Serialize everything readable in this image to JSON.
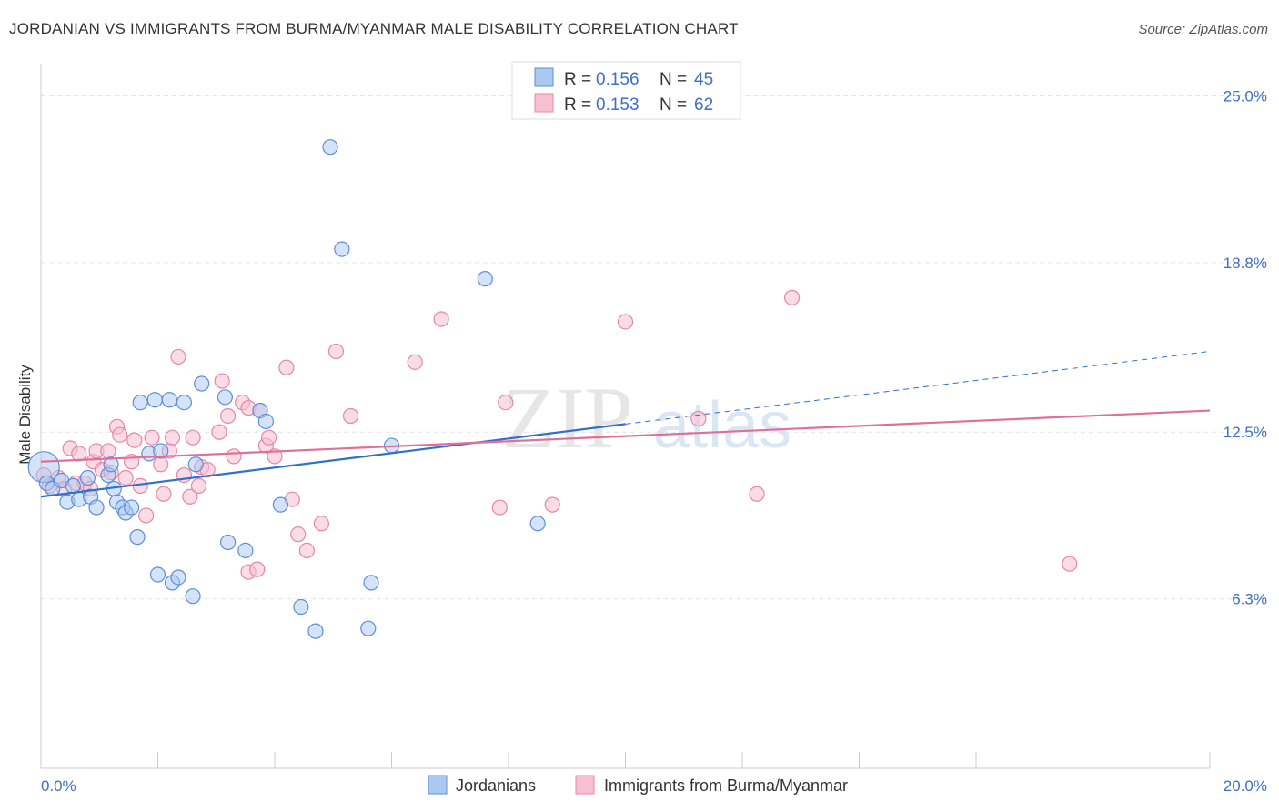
{
  "header": {
    "title": "JORDANIAN VS IMMIGRANTS FROM BURMA/MYANMAR MALE DISABILITY CORRELATION CHART",
    "source": "Source: ZipAtlas.com"
  },
  "watermark": {
    "zip": "ZIP",
    "atlas": "atlas"
  },
  "colors": {
    "blue": "#5b8fd9",
    "blue_fill": "#aac8f0",
    "blue_line": "#2f6fd0",
    "pink": "#e886a6",
    "pink_fill": "#f6c0d2",
    "pink_line": "#e0709a",
    "tick_text": "#3d6fc4",
    "grid": "#e4e4e4"
  },
  "chart_data": {
    "type": "scatter",
    "title": "JORDANIAN VS IMMIGRANTS FROM BURMA/MYANMAR MALE DISABILITY CORRELATION CHART",
    "xlabel": "",
    "ylabel": "Male Disability",
    "xlim": [
      0,
      20
    ],
    "ylim": [
      0,
      26.2
    ],
    "x_tick_labels": [
      "0.0%",
      "20.0%"
    ],
    "y_ticks": [
      6.3,
      12.5,
      18.8,
      25.0
    ],
    "y_tick_labels": [
      "6.3%",
      "12.5%",
      "18.8%",
      "25.0%"
    ],
    "grid": true,
    "legend": {
      "placement": "top-center",
      "entries": [
        {
          "r_label": "R =",
          "r_value": "0.156",
          "n_label": "N =",
          "n_value": "45"
        },
        {
          "r_label": "R =",
          "r_value": "0.153",
          "n_label": "N =",
          "n_value": "62"
        }
      ]
    },
    "series": [
      {
        "name": "Jordanians",
        "color": "#5b8fd9",
        "trend": {
          "x0": 0,
          "y0": 10.1,
          "x1": 10,
          "y1": 12.8,
          "dashed_to_x": 20,
          "dashed_to_y": 15.5
        },
        "points": [
          [
            0.05,
            11.2
          ],
          [
            0.1,
            10.6
          ],
          [
            0.2,
            10.4
          ],
          [
            0.35,
            10.7
          ],
          [
            0.45,
            9.9
          ],
          [
            0.55,
            10.5
          ],
          [
            0.65,
            10.0
          ],
          [
            0.8,
            10.8
          ],
          [
            0.85,
            10.1
          ],
          [
            0.95,
            9.7
          ],
          [
            1.15,
            10.9
          ],
          [
            1.2,
            11.3
          ],
          [
            1.25,
            10.4
          ],
          [
            1.3,
            9.9
          ],
          [
            1.4,
            9.7
          ],
          [
            1.45,
            9.5
          ],
          [
            1.55,
            9.7
          ],
          [
            1.65,
            8.6
          ],
          [
            1.7,
            13.6
          ],
          [
            1.85,
            11.7
          ],
          [
            1.95,
            13.7
          ],
          [
            2.0,
            7.2
          ],
          [
            2.05,
            11.8
          ],
          [
            2.2,
            13.7
          ],
          [
            2.25,
            6.9
          ],
          [
            2.35,
            7.1
          ],
          [
            2.45,
            13.6
          ],
          [
            2.6,
            6.4
          ],
          [
            2.65,
            11.3
          ],
          [
            2.75,
            14.3
          ],
          [
            3.15,
            13.8
          ],
          [
            3.2,
            8.4
          ],
          [
            3.5,
            8.1
          ],
          [
            3.75,
            13.3
          ],
          [
            3.85,
            12.9
          ],
          [
            4.1,
            9.8
          ],
          [
            4.45,
            6.0
          ],
          [
            4.7,
            5.1
          ],
          [
            4.95,
            23.1
          ],
          [
            5.15,
            19.3
          ],
          [
            5.6,
            5.2
          ],
          [
            5.65,
            6.9
          ],
          [
            6.0,
            12.0
          ],
          [
            7.6,
            18.2
          ],
          [
            8.5,
            9.1
          ]
        ]
      },
      {
        "name": "Immigrants from Burma/Myanmar",
        "color": "#e886a6",
        "trend": {
          "x0": 0,
          "y0": 11.4,
          "x1": 20,
          "y1": 13.3
        },
        "points": [
          [
            0.05,
            10.9
          ],
          [
            0.15,
            10.5
          ],
          [
            0.3,
            10.8
          ],
          [
            0.4,
            10.4
          ],
          [
            0.5,
            11.9
          ],
          [
            0.6,
            10.6
          ],
          [
            0.65,
            11.7
          ],
          [
            0.75,
            10.6
          ],
          [
            0.85,
            10.4
          ],
          [
            0.9,
            11.4
          ],
          [
            0.95,
            11.8
          ],
          [
            1.05,
            11.1
          ],
          [
            1.15,
            11.8
          ],
          [
            1.2,
            11.0
          ],
          [
            1.3,
            12.7
          ],
          [
            1.35,
            12.4
          ],
          [
            1.45,
            10.8
          ],
          [
            1.55,
            11.4
          ],
          [
            1.6,
            12.2
          ],
          [
            1.7,
            10.5
          ],
          [
            1.8,
            9.4
          ],
          [
            1.9,
            12.3
          ],
          [
            2.05,
            11.3
          ],
          [
            2.1,
            10.2
          ],
          [
            2.2,
            11.8
          ],
          [
            2.25,
            12.3
          ],
          [
            2.35,
            15.3
          ],
          [
            2.45,
            10.9
          ],
          [
            2.55,
            10.1
          ],
          [
            2.6,
            12.3
          ],
          [
            2.7,
            10.5
          ],
          [
            2.75,
            11.2
          ],
          [
            2.85,
            11.1
          ],
          [
            3.05,
            12.5
          ],
          [
            3.1,
            14.4
          ],
          [
            3.2,
            13.1
          ],
          [
            3.3,
            11.6
          ],
          [
            3.45,
            13.6
          ],
          [
            3.55,
            13.4
          ],
          [
            3.55,
            7.3
          ],
          [
            3.7,
            7.4
          ],
          [
            3.75,
            13.3
          ],
          [
            3.85,
            12.0
          ],
          [
            3.9,
            12.3
          ],
          [
            4.0,
            11.6
          ],
          [
            4.2,
            14.9
          ],
          [
            4.3,
            10.0
          ],
          [
            4.4,
            8.7
          ],
          [
            4.55,
            8.1
          ],
          [
            4.8,
            9.1
          ],
          [
            5.05,
            15.5
          ],
          [
            5.3,
            13.1
          ],
          [
            6.4,
            15.1
          ],
          [
            6.85,
            16.7
          ],
          [
            7.85,
            9.7
          ],
          [
            7.95,
            13.6
          ],
          [
            8.75,
            9.8
          ],
          [
            10.0,
            16.6
          ],
          [
            11.25,
            13.0
          ],
          [
            12.25,
            10.2
          ],
          [
            12.85,
            17.5
          ],
          [
            17.6,
            7.6
          ]
        ]
      }
    ]
  },
  "bottom_legend": [
    {
      "label": "Jordanians"
    },
    {
      "label": "Immigrants from Burma/Myanmar"
    }
  ]
}
